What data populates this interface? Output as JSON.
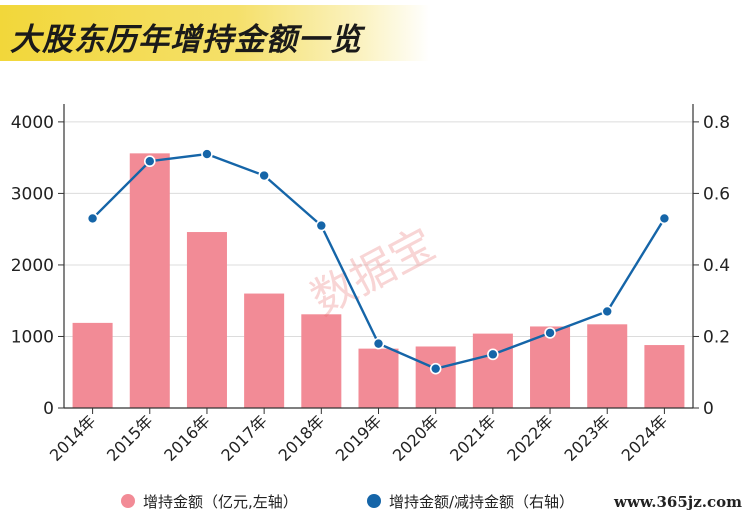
{
  "title": "大股东历年增持金额一览",
  "watermark_site": "www.365jz.com",
  "watermark_stamp": "数据宝",
  "colors": {
    "bar": "#f28b96",
    "line": "#1565a8",
    "title_band": "#f2d73a"
  },
  "chart_data": {
    "type": "bar",
    "categories": [
      "2014年",
      "2015年",
      "2016年",
      "2017年",
      "2018年",
      "2019年",
      "2020年",
      "2021年",
      "2022年",
      "2023年",
      "2024年"
    ],
    "series": [
      {
        "name": "增持金额（亿元,左轴）",
        "type": "bar",
        "axis": "left",
        "values": [
          1190,
          3560,
          2460,
          1600,
          1310,
          830,
          860,
          1040,
          1140,
          1170,
          880
        ]
      },
      {
        "name": "增持金额/减持金额（右轴）",
        "type": "line",
        "axis": "right",
        "values": [
          0.53,
          0.69,
          0.71,
          0.65,
          0.51,
          0.18,
          0.11,
          0.15,
          0.21,
          0.27,
          0.53
        ]
      }
    ],
    "y_left": {
      "ticks": [
        "0",
        "1000",
        "2000",
        "3000",
        "4000"
      ],
      "lim": [
        0,
        4250
      ]
    },
    "y_right": {
      "ticks": [
        "0",
        "0.2",
        "0.4",
        "0.6",
        "0.8"
      ],
      "lim": [
        0,
        0.85
      ]
    },
    "grid": true,
    "legend_position": "bottom"
  }
}
